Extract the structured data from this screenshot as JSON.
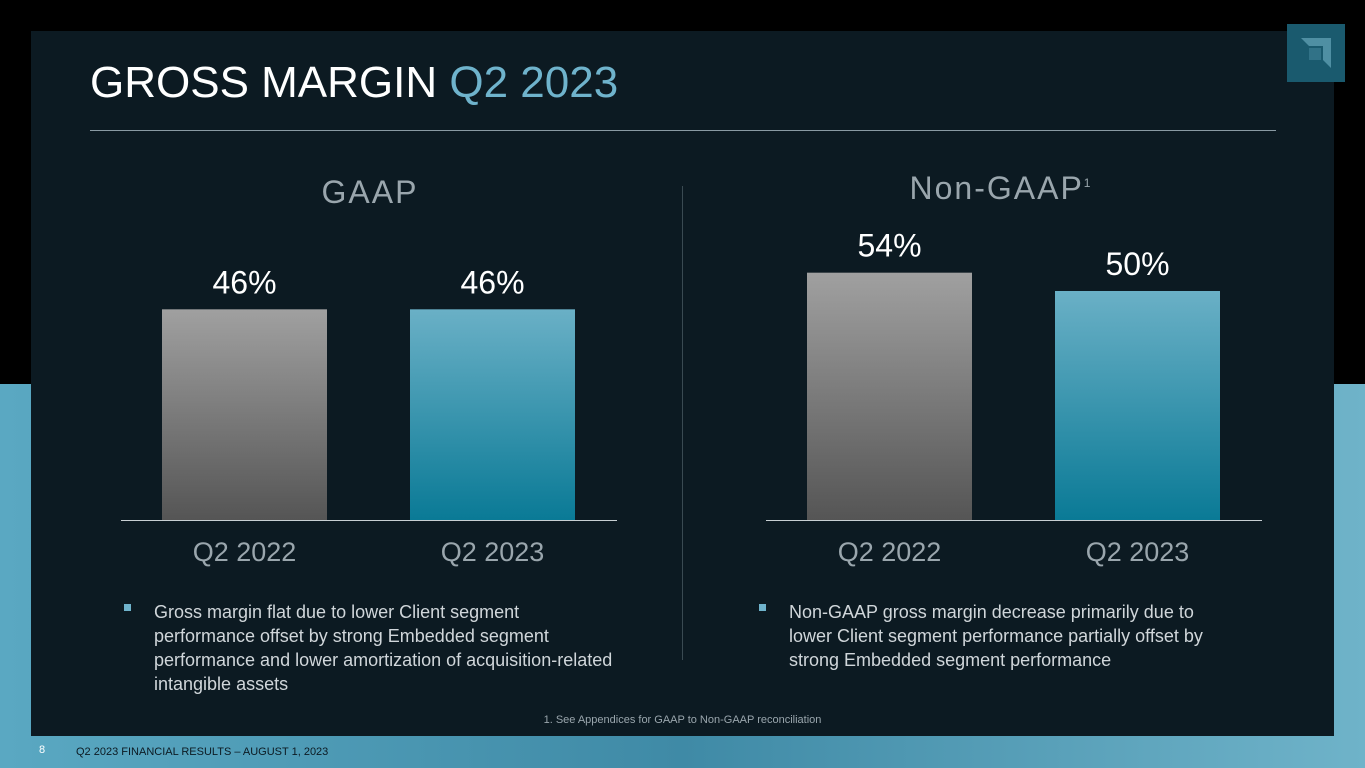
{
  "slide": {
    "title_main": "GROSS MARGIN ",
    "title_accent": "Q2 2023",
    "footnote": "1. See Appendices for GAAP to Non-GAAP reconciliation",
    "page_number": "8",
    "footer": "Q2 2023 FINANCIAL RESULTS – AUGUST 1, 2023"
  },
  "colors": {
    "accent": "#6fb3cc",
    "bar_gray_top": "#a0a0a0",
    "bar_gray_bottom": "#555555",
    "bar_blue_top": "#6ab0c6",
    "bar_blue_bottom": "#0a7a96"
  },
  "chart_data": [
    {
      "type": "bar",
      "title": "GAAP",
      "title_sup": "",
      "categories": [
        "Q2 2022",
        "Q2 2023"
      ],
      "values": [
        46,
        46
      ],
      "labels": [
        "46%",
        "46%"
      ],
      "ylim": [
        0,
        100
      ]
    },
    {
      "type": "bar",
      "title": "Non-GAAP",
      "title_sup": "1",
      "categories": [
        "Q2 2022",
        "Q2 2023"
      ],
      "values": [
        54,
        50
      ],
      "labels": [
        "54%",
        "50%"
      ],
      "ylim": [
        0,
        100
      ]
    }
  ],
  "bullets": {
    "gaap": "Gross margin flat due to lower Client segment performance offset by strong Embedded segment performance and lower amortization of acquisition-related intangible assets",
    "non_gaap": "Non-GAAP gross margin decrease primarily due to lower Client segment performance partially offset by strong Embedded segment performance"
  },
  "logo": {
    "icon": "amd-arrow-icon"
  }
}
